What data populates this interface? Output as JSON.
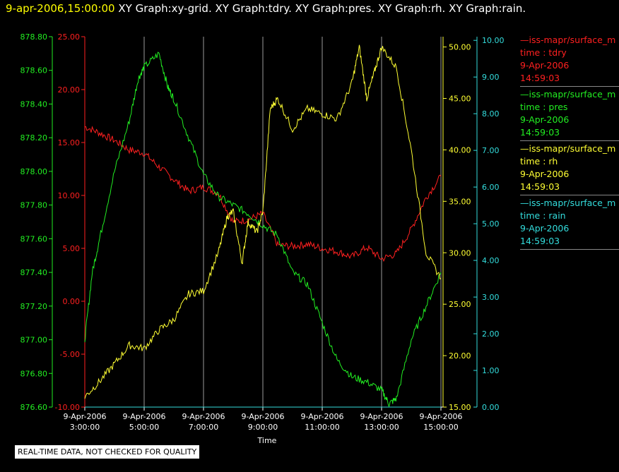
{
  "header": {
    "timestamp": "9-apr-2006,15:00:00",
    "titles": [
      "XY Graph:xy-grid.",
      "XY Graph:tdry.",
      "XY Graph:pres.",
      "XY Graph:rh.",
      "XY Graph:rain."
    ]
  },
  "notice": "REAL-TIME DATA, NOT CHECKED FOR QUALITY",
  "legend": [
    {
      "source": "—iss-mapr/surface_m",
      "variable": "time : tdry",
      "date": "9-Apr-2006",
      "time": "14:59:03",
      "color": "#ff2020"
    },
    {
      "source": "—iss-mapr/surface_m",
      "variable": "time : pres",
      "date": "9-Apr-2006",
      "time": "14:59:03",
      "color": "#22ee22"
    },
    {
      "source": "—iss-mapr/surface_m",
      "variable": "time : rh",
      "date": "9-Apr-2006",
      "time": "14:59:03",
      "color": "#ffff33"
    },
    {
      "source": "—iss-mapr/surface_m",
      "variable": "time : rain",
      "date": "9-Apr-2006",
      "time": "14:59:03",
      "color": "#33dddd"
    }
  ],
  "chart_data": {
    "type": "line",
    "xlabel": "Time",
    "x_ticks": [
      {
        "t": 3,
        "date": "9-Apr-2006",
        "time": "3:00:00"
      },
      {
        "t": 5,
        "date": "9-Apr-2006",
        "time": "5:00:00"
      },
      {
        "t": 7,
        "date": "9-Apr-2006",
        "time": "7:00:00"
      },
      {
        "t": 9,
        "date": "9-Apr-2006",
        "time": "9:00:00"
      },
      {
        "t": 11,
        "date": "9-Apr-2006",
        "time": "11:00:00"
      },
      {
        "t": 13,
        "date": "9-Apr-2006",
        "time": "13:00:00"
      },
      {
        "t": 15,
        "date": "9-Apr-2006",
        "time": "15:00:00"
      }
    ],
    "xlim": [
      3,
      15
    ],
    "axes": {
      "pres": {
        "color": "#22ee22",
        "ylim": [
          876.6,
          878.8
        ],
        "ticks": [
          "876.60",
          "876.80",
          "877.00",
          "877.20",
          "877.40",
          "877.60",
          "877.80",
          "878.00",
          "878.20",
          "878.40",
          "878.60",
          "878.80"
        ]
      },
      "tdry": {
        "color": "#ff2020",
        "ylim": [
          -10,
          25
        ],
        "ticks": [
          "-10.00",
          "-5.00",
          "0.00",
          "5.00",
          "10.00",
          "15.00",
          "20.00",
          "25.00"
        ]
      },
      "rh": {
        "color": "#ffff33",
        "ylim": [
          15,
          51
        ],
        "ticks": [
          "15.00",
          "20.00",
          "25.00",
          "30.00",
          "35.00",
          "40.00",
          "45.00",
          "50.00"
        ]
      },
      "rain": {
        "color": "#33dddd",
        "ylim": [
          0,
          10.1
        ],
        "ticks": [
          "0.00",
          "1.00",
          "2.00",
          "3.00",
          "4.00",
          "5.00",
          "6.00",
          "7.00",
          "8.00",
          "9.00",
          "10.00"
        ]
      }
    },
    "series": [
      {
        "name": "tdry",
        "axis": "tdry",
        "color": "#ff2020",
        "x": [
          3.0,
          3.5,
          4.0,
          4.5,
          5.0,
          5.5,
          6.0,
          6.5,
          7.0,
          7.5,
          8.0,
          8.5,
          9.0,
          9.5,
          10.0,
          10.5,
          11.0,
          11.5,
          12.0,
          12.5,
          13.0,
          13.5,
          14.0,
          14.5,
          15.0
        ],
        "y": [
          16.5,
          15.9,
          15.2,
          14.3,
          14.0,
          12.7,
          11.5,
          10.4,
          10.8,
          10.2,
          7.5,
          7.7,
          8.3,
          5.3,
          5.2,
          5.4,
          5.0,
          4.7,
          4.2,
          5.1,
          4.0,
          4.5,
          6.8,
          9.8,
          11.8
        ]
      },
      {
        "name": "pres",
        "axis": "pres",
        "color": "#22ee22",
        "x": [
          3.0,
          3.25,
          3.5,
          4.0,
          4.5,
          4.8,
          5.0,
          5.5,
          5.8,
          6.0,
          6.5,
          7.0,
          7.5,
          8.0,
          8.5,
          9.0,
          9.5,
          10.0,
          10.5,
          11.0,
          11.5,
          12.0,
          12.5,
          13.0,
          13.25,
          13.5,
          14.0,
          14.5,
          15.0
        ],
        "y": [
          877.0,
          877.4,
          877.6,
          878.0,
          878.3,
          878.55,
          878.62,
          878.7,
          878.5,
          878.43,
          878.2,
          877.98,
          877.85,
          877.8,
          877.75,
          877.68,
          877.62,
          877.4,
          877.33,
          877.1,
          876.88,
          876.78,
          876.75,
          876.7,
          876.62,
          876.65,
          877.0,
          877.2,
          877.4
        ]
      },
      {
        "name": "rh",
        "axis": "rh",
        "color": "#ffff33",
        "x": [
          3.0,
          3.5,
          4.0,
          4.5,
          5.0,
          5.5,
          6.0,
          6.5,
          7.0,
          7.5,
          7.8,
          8.0,
          8.3,
          8.5,
          8.8,
          9.0,
          9.25,
          9.5,
          10.0,
          10.5,
          11.0,
          11.5,
          12.0,
          12.25,
          12.5,
          12.75,
          13.0,
          13.5,
          14.0,
          14.5,
          15.0
        ],
        "y": [
          16.0,
          17.5,
          19.2,
          21.0,
          20.7,
          22.5,
          23.5,
          26.0,
          26.3,
          30.0,
          33.5,
          34.0,
          29.0,
          33.0,
          32.0,
          34.0,
          44.0,
          45.0,
          42.0,
          44.0,
          43.5,
          43.0,
          46.5,
          50.0,
          45.0,
          47.5,
          50.0,
          48.0,
          40.0,
          30.0,
          27.5
        ]
      },
      {
        "name": "rain",
        "axis": "rain",
        "color": "#33dddd",
        "x": [
          3.0,
          15.0
        ],
        "y": [
          0.0,
          0.0
        ]
      }
    ]
  }
}
